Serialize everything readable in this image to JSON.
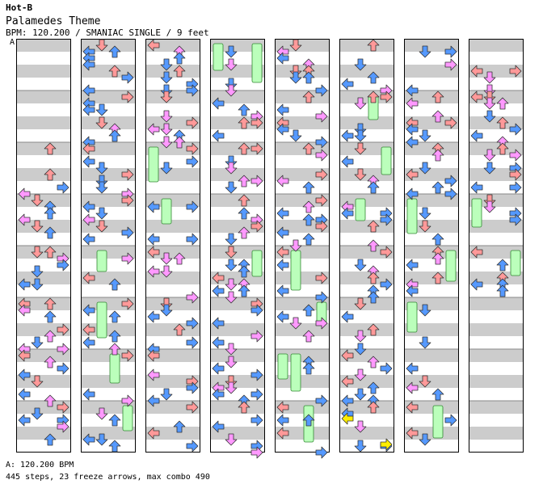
{
  "header": {
    "artist": "Hot-B",
    "title": "Palamedes Theme",
    "info": "BPM: 120.200 / SMANIAC SINGLE / 9 feet",
    "bpm_marker": "A"
  },
  "footer": {
    "bpm_line": "A: 120.200 BPM",
    "stats_line": "445 steps, 23 freeze arrows, max combo 490"
  },
  "colors": {
    "quarter": "#ff9999",
    "eighth": "#5599ff",
    "sixteenth": "#ff99ff",
    "triplet": "#ffee00",
    "freeze": "#bbffbb",
    "stripe": "#cccccc"
  },
  "chart_data": {
    "type": "step-chart",
    "columns": 8,
    "measures_per_column": 8,
    "lanes": [
      "left",
      "down",
      "up",
      "right"
    ],
    "total_steps": 445,
    "freeze_arrows": 23,
    "max_combo": 490
  }
}
